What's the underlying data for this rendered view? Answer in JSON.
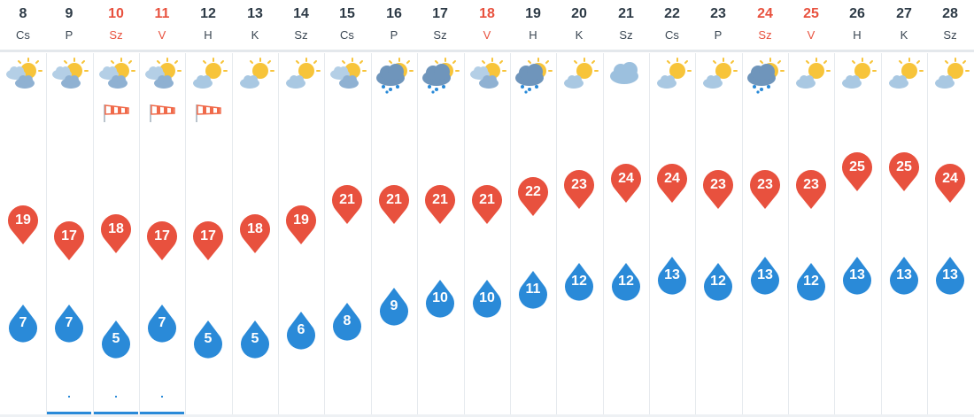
{
  "forecast": {
    "days": [
      {
        "num": "8",
        "name": "Cs",
        "weekend": false,
        "icon": "sun-cloud-icon",
        "wind": false,
        "max": "19",
        "min": "7",
        "rain": false
      },
      {
        "num": "9",
        "name": "P",
        "weekend": false,
        "icon": "sun-cloud-icon",
        "wind": false,
        "max": "17",
        "min": "7",
        "rain": true
      },
      {
        "num": "10",
        "name": "Sz",
        "weekend": true,
        "icon": "sun-cloud-icon",
        "wind": true,
        "max": "18",
        "min": "5",
        "rain": true
      },
      {
        "num": "11",
        "name": "V",
        "weekend": true,
        "icon": "sun-cloud-icon",
        "wind": true,
        "max": "17",
        "min": "7",
        "rain": true
      },
      {
        "num": "12",
        "name": "H",
        "weekend": false,
        "icon": "sun-small-cloud-icon",
        "wind": true,
        "max": "17",
        "min": "5",
        "rain": false
      },
      {
        "num": "13",
        "name": "K",
        "weekend": false,
        "icon": "sun-small-cloud-icon",
        "wind": false,
        "max": "18",
        "min": "5",
        "rain": false
      },
      {
        "num": "14",
        "name": "Sz",
        "weekend": false,
        "icon": "sun-small-cloud-icon",
        "wind": false,
        "max": "19",
        "min": "6",
        "rain": false
      },
      {
        "num": "15",
        "name": "Cs",
        "weekend": false,
        "icon": "sun-cloud-icon",
        "wind": false,
        "max": "21",
        "min": "8",
        "rain": false
      },
      {
        "num": "16",
        "name": "P",
        "weekend": false,
        "icon": "rain-cloud-icon",
        "wind": false,
        "max": "21",
        "min": "9",
        "rain": false
      },
      {
        "num": "17",
        "name": "Sz",
        "weekend": false,
        "icon": "rain-cloud-icon",
        "wind": false,
        "max": "21",
        "min": "10",
        "rain": false
      },
      {
        "num": "18",
        "name": "V",
        "weekend": true,
        "icon": "sun-cloud-icon",
        "wind": false,
        "max": "21",
        "min": "10",
        "rain": false
      },
      {
        "num": "19",
        "name": "H",
        "weekend": false,
        "icon": "rain-cloud-icon",
        "wind": false,
        "max": "22",
        "min": "11",
        "rain": false
      },
      {
        "num": "20",
        "name": "K",
        "weekend": false,
        "icon": "sun-small-cloud-icon",
        "wind": false,
        "max": "23",
        "min": "12",
        "rain": false
      },
      {
        "num": "21",
        "name": "Sz",
        "weekend": false,
        "icon": "cloud-icon",
        "wind": false,
        "max": "24",
        "min": "12",
        "rain": false
      },
      {
        "num": "22",
        "name": "Cs",
        "weekend": false,
        "icon": "sun-small-cloud-icon",
        "wind": false,
        "max": "24",
        "min": "13",
        "rain": false
      },
      {
        "num": "23",
        "name": "P",
        "weekend": false,
        "icon": "sun-small-cloud-icon",
        "wind": false,
        "max": "23",
        "min": "12",
        "rain": false
      },
      {
        "num": "24",
        "name": "Sz",
        "weekend": true,
        "icon": "rain-cloud-icon",
        "wind": false,
        "max": "23",
        "min": "13",
        "rain": false
      },
      {
        "num": "25",
        "name": "V",
        "weekend": true,
        "icon": "sun-small-cloud-icon",
        "wind": false,
        "max": "23",
        "min": "12",
        "rain": false
      },
      {
        "num": "26",
        "name": "H",
        "weekend": false,
        "icon": "sun-small-cloud-icon",
        "wind": false,
        "max": "25",
        "min": "13",
        "rain": false
      },
      {
        "num": "27",
        "name": "K",
        "weekend": false,
        "icon": "sun-small-cloud-icon",
        "wind": false,
        "max": "25",
        "min": "13",
        "rain": false
      },
      {
        "num": "28",
        "name": "Sz",
        "weekend": false,
        "icon": "sun-small-cloud-icon",
        "wind": false,
        "max": "24",
        "min": "13",
        "rain": false
      }
    ],
    "colors": {
      "max": "#e8513e",
      "min": "#2a8ad8",
      "weekend": "#e8513e",
      "wind": "#f06a4a",
      "sun": "#f7c43a",
      "cloud": "#8fb6d8"
    }
  }
}
